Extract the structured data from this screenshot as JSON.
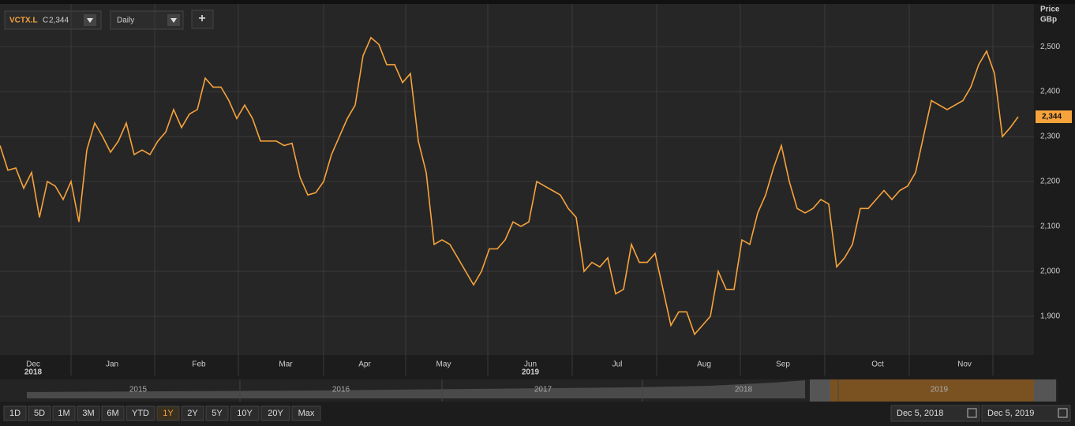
{
  "toolbar": {
    "symbol": "VCTX.L",
    "close_prefix": "C",
    "close": "2,344",
    "interval": "Daily",
    "add": "+"
  },
  "chart_data": {
    "type": "line",
    "categories": [
      null,
      null,
      null,
      null,
      "Dec",
      null,
      null,
      null,
      null,
      null,
      null,
      null,
      null,
      null,
      "Jan",
      null,
      null,
      null,
      null,
      null,
      null,
      null,
      null,
      null,
      null,
      "Feb",
      null,
      null,
      null,
      null,
      null,
      null,
      null,
      null,
      null,
      null,
      "Mar",
      null,
      null,
      null,
      null,
      null,
      null,
      null,
      null,
      null,
      "Apr",
      null,
      null,
      null,
      null,
      null,
      null,
      null,
      null,
      null,
      "May",
      null,
      null,
      null,
      null,
      null,
      null,
      null,
      null,
      null,
      null,
      "Jun",
      null,
      null,
      null,
      null,
      null,
      null,
      null,
      null,
      null,
      null,
      "Jul",
      null,
      null,
      null,
      null,
      null,
      null,
      null,
      null,
      null,
      null,
      "Aug",
      null,
      null,
      null,
      null,
      null,
      null,
      null,
      null,
      null,
      "Sep",
      null,
      null,
      null,
      null,
      null,
      null,
      null,
      null,
      null,
      null,
      null,
      "Oct",
      null,
      null,
      null,
      null,
      null,
      null,
      null,
      null,
      null,
      null,
      "Nov",
      null,
      null,
      null,
      null,
      null,
      null,
      null
    ],
    "year_labels": [
      "2018",
      "2019"
    ],
    "series": [
      {
        "name": "VCTX.L",
        "color": "#f7a33c",
        "values": [
          2280,
          2225,
          2230,
          2185,
          2220,
          2120,
          2200,
          2190,
          2160,
          2200,
          2110,
          2270,
          2330,
          2300,
          2265,
          2290,
          2330,
          2260,
          2270,
          2260,
          2290,
          2310,
          2360,
          2320,
          2350,
          2360,
          2430,
          2410,
          2410,
          2380,
          2340,
          2370,
          2340,
          2290,
          2290,
          2290,
          2280,
          2285,
          2210,
          2170,
          2175,
          2200,
          2260,
          2300,
          2340,
          2370,
          2480,
          2520,
          2505,
          2460,
          2460,
          2420,
          2440,
          2290,
          2220,
          2060,
          2070,
          2060,
          2030,
          2000,
          1970,
          2000,
          2050,
          2050,
          2070,
          2110,
          2100,
          2110,
          2200,
          2190,
          2180,
          2170,
          2140,
          2120,
          2000,
          2020,
          2010,
          2030,
          1950,
          1960,
          2060,
          2020,
          2020,
          2040,
          1960,
          1880,
          1910,
          1910,
          1860,
          1880,
          1900,
          2000,
          1960,
          1960,
          2070,
          2060,
          2130,
          2170,
          2230,
          2280,
          2200,
          2140,
          2130,
          2140,
          2160,
          2150,
          2010,
          2030,
          2060,
          2140,
          2140,
          2160,
          2180,
          2160,
          2180,
          2190,
          2220,
          2300,
          2380,
          2370,
          2360,
          2370,
          2380,
          2410,
          2460,
          2490,
          2440,
          2300,
          2320,
          2344
        ]
      }
    ],
    "current_label": "2,344",
    "axis_title": [
      "Price",
      "GBp"
    ],
    "ylim": [
      1814,
      2595
    ],
    "yticks": [
      {
        "value": 1900,
        "label": "1,900"
      },
      {
        "value": 2000,
        "label": "2,000"
      },
      {
        "value": 2100,
        "label": "2,100"
      },
      {
        "value": 2200,
        "label": "2,200"
      },
      {
        "value": 2300,
        "label": "2,300"
      },
      {
        "value": 2400,
        "label": "2,400"
      },
      {
        "value": 2500,
        "label": "2,500"
      }
    ],
    "grid": true
  },
  "navigator": {
    "years": [
      "2015",
      "2016",
      "2017",
      "2018",
      "2019"
    ]
  },
  "range_buttons": [
    "1D",
    "5D",
    "1M",
    "3M",
    "6M",
    "YTD",
    "1Y",
    "2Y",
    "5Y",
    "10Y",
    "20Y",
    "Max"
  ],
  "selected_range": 6,
  "date_range": [
    "Dec 5, 2018",
    "Dec 5, 2019"
  ]
}
